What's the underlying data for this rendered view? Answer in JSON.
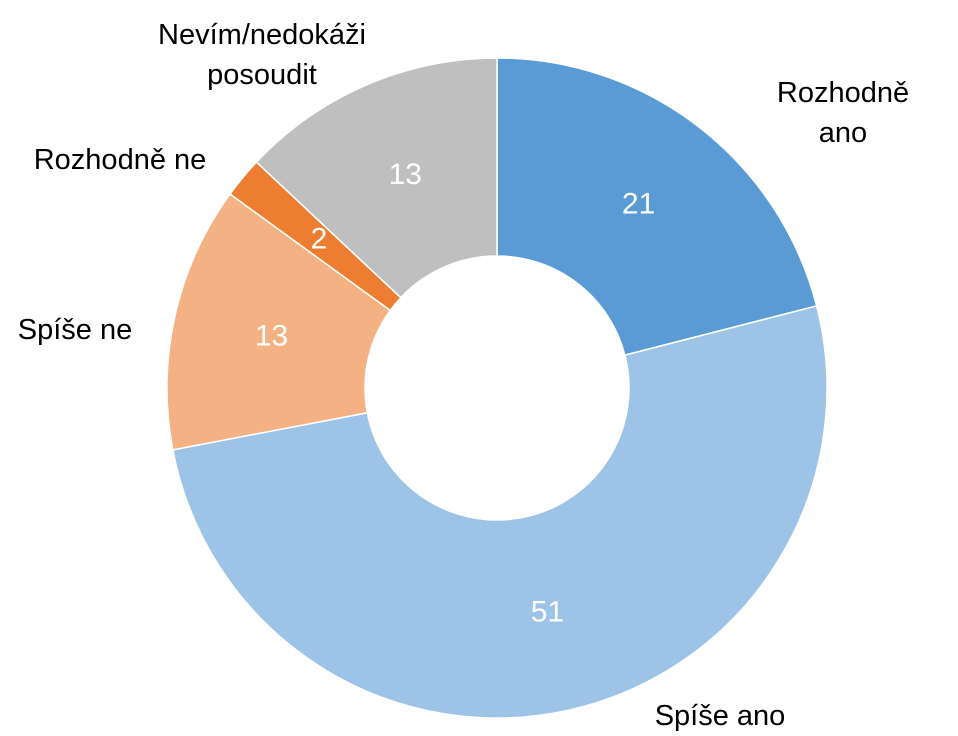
{
  "chart_data": {
    "type": "donut",
    "categories": [
      "Rozhodně ano",
      "Spíše ano",
      "Spíše ne",
      "Rozhodně ne",
      "Nevím/nedokáži posoudit"
    ],
    "values": [
      21,
      51,
      13,
      2,
      13
    ],
    "colors": [
      "#5b9bd5",
      "#9dc3e6",
      "#f4b183",
      "#ed7d31",
      "#bfbfbf"
    ]
  }
}
